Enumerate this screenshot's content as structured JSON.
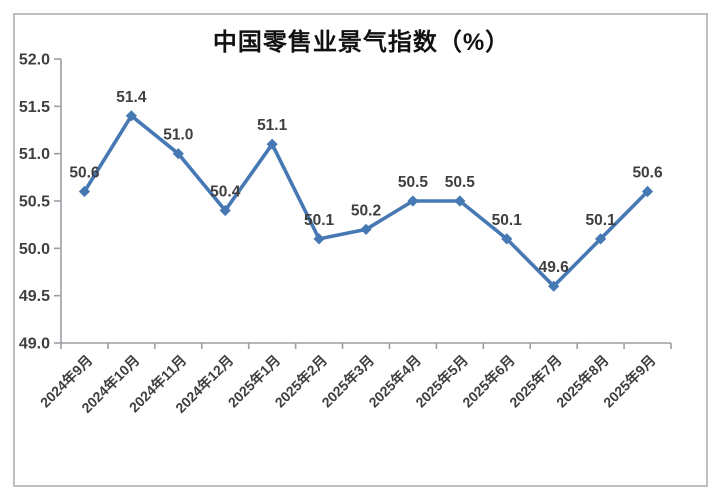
{
  "page": {
    "background": "#ffffff",
    "frame_border_color": "#bcc0c4"
  },
  "chart_data": {
    "type": "line",
    "title": "中国零售业景气指数（%）",
    "categories": [
      "2024年9月",
      "2024年10月",
      "2024年11月",
      "2024年12月",
      "2025年1月",
      "2025年2月",
      "2025年3月",
      "2025年4月",
      "2025年5月",
      "2025年6月",
      "2025年7月",
      "2025年8月",
      "2025年9月"
    ],
    "values": [
      50.6,
      51.4,
      51.0,
      50.4,
      51.1,
      50.1,
      50.2,
      50.5,
      50.5,
      50.1,
      49.6,
      50.1,
      50.6
    ],
    "data_labels": [
      "50.6",
      "51.4",
      "51.0",
      "50.4",
      "51.1",
      "50.1",
      "50.2",
      "50.5",
      "50.5",
      "50.1",
      "49.6",
      "50.1",
      "50.6"
    ],
    "xlabel": "",
    "ylabel": "",
    "ylim": [
      49.0,
      52.0
    ],
    "y_tick_step": 0.5,
    "y_tick_labels": [
      "49.0",
      "49.5",
      "50.0",
      "50.5",
      "51.0",
      "51.5",
      "52.0"
    ],
    "grid": false,
    "legend_position": "none",
    "line_color": "#4678b4",
    "marker": "diamond",
    "marker_color": "#4678b4",
    "data_label_color": "#3f3f3f",
    "tick_label_color": "#3f3f3f",
    "axis_color": "#9b9fa3",
    "x_label_rotation_deg": -45
  }
}
